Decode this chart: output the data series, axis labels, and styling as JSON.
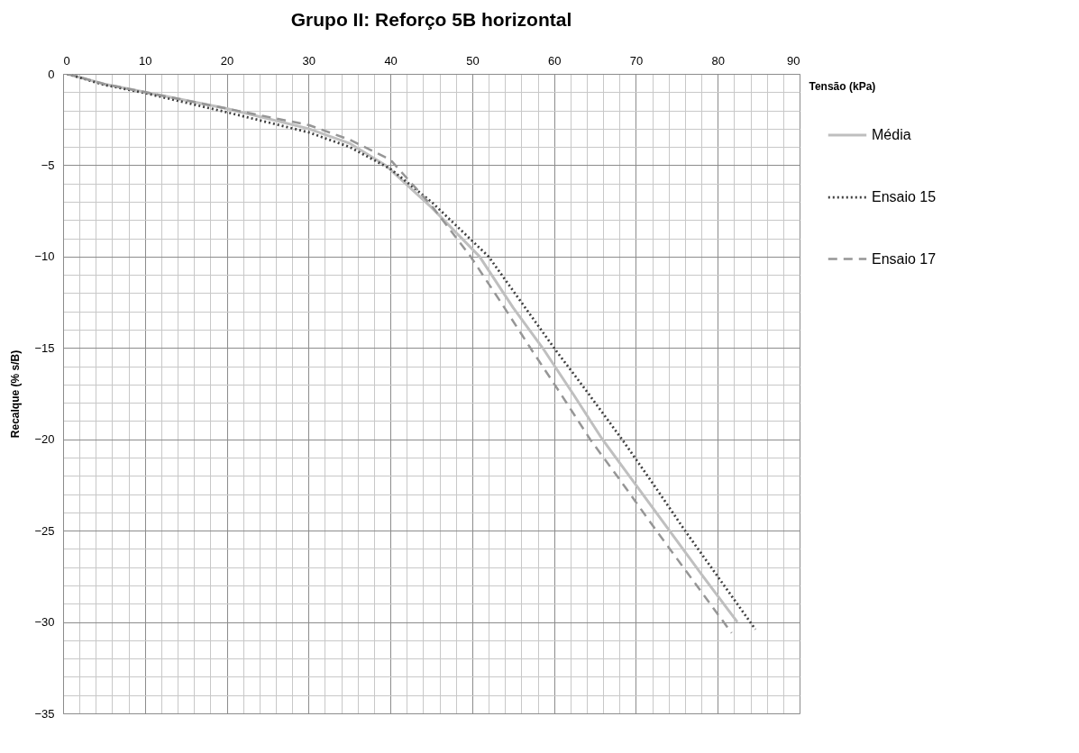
{
  "chart_data": {
    "type": "line",
    "title": "Grupo II: Reforço 5B horizontal",
    "xlabel": "Tensão (kPa)",
    "ylabel": "Recalque (% s/B)",
    "xlim": [
      0,
      90
    ],
    "xticks": [
      0,
      10,
      20,
      30,
      40,
      50,
      60,
      70,
      80,
      90
    ],
    "ylim": [
      -35,
      0
    ],
    "yticks": [
      0,
      -5,
      -10,
      -15,
      -20,
      -25,
      -30,
      -35
    ],
    "grid": true,
    "legend": "right",
    "marker": "none",
    "series": [
      {
        "name": "Média",
        "color": "#bfbfbf",
        "line_style": "solid",
        "x": [
          0.5,
          5,
          10,
          20,
          30,
          35,
          39.4,
          45,
          50.9,
          55,
          58.6,
          62.3,
          65.9,
          70,
          74.1,
          78.2,
          82.4
        ],
        "values": [
          0,
          -0.55,
          -1.0,
          -1.9,
          -3.0,
          -3.8,
          -5,
          -7.3,
          -10,
          -12.8,
          -15,
          -17.5,
          -20,
          -22.5,
          -25,
          -27.5,
          -30
        ]
      },
      {
        "name": "Ensaio 15",
        "color": "#404040",
        "line_style": "dotted",
        "x": [
          0.5,
          5,
          10,
          20,
          30,
          35,
          40,
          45,
          52.0,
          56,
          60.0,
          64.2,
          68.3,
          72.2,
          76.0,
          80.3,
          84.6
        ],
        "values": [
          0,
          -0.6,
          -1.05,
          -2.1,
          -3.2,
          -4.0,
          -5.2,
          -7.0,
          -10,
          -12.5,
          -15,
          -17.5,
          -20,
          -22.5,
          -25,
          -27.7,
          -30.4
        ]
      },
      {
        "name": "Ensaio 17",
        "color": "#969696",
        "line_style": "dashed",
        "x": [
          0.5,
          5,
          10,
          20,
          30,
          35,
          40,
          45,
          49.8,
          53.5,
          57.1,
          60.8,
          64.4,
          68.5,
          72.5,
          77.1,
          81.7
        ],
        "values": [
          0,
          -0.55,
          -1.0,
          -1.9,
          -2.8,
          -3.6,
          -4.7,
          -7.2,
          -10,
          -12.5,
          -15,
          -17.5,
          -20,
          -22.5,
          -25,
          -27.8,
          -30.6
        ]
      }
    ]
  }
}
